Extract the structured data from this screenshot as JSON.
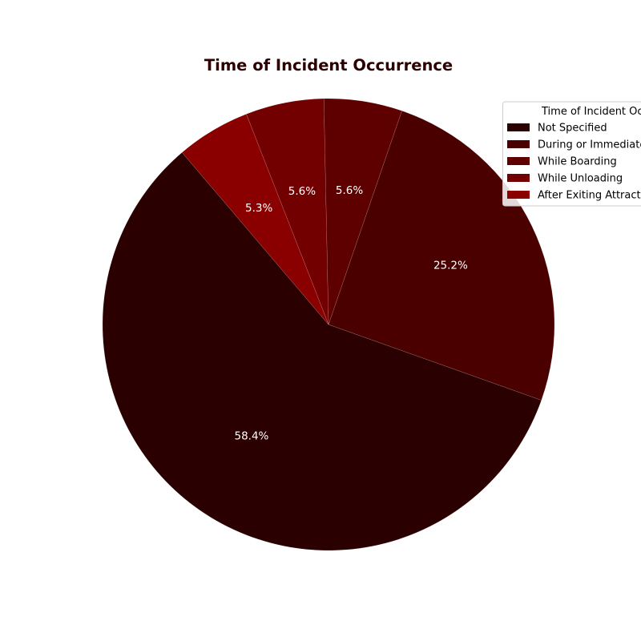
{
  "chart_data": {
    "type": "pie",
    "title": "Time of Incident Occurrence",
    "title_color": "#2a0000",
    "legend": {
      "title": "Time of Incident Occurrence",
      "placement": "top-right"
    },
    "slices": [
      {
        "label": "Not Specified",
        "value": 58.4,
        "pct_label": "58.4%",
        "color": "#2a0000"
      },
      {
        "label": "During or Immediately After Ride",
        "value": 25.2,
        "pct_label": "25.2%",
        "color": "#4b0000"
      },
      {
        "label": "While Boarding",
        "value": 5.6,
        "pct_label": "5.6%",
        "color": "#5f0000"
      },
      {
        "label": "While Unloading",
        "value": 5.6,
        "pct_label": "5.6%",
        "color": "#730000"
      },
      {
        "label": "After Exiting Attraction",
        "value": 5.3,
        "pct_label": "5.3%",
        "color": "#8a0000"
      }
    ]
  }
}
